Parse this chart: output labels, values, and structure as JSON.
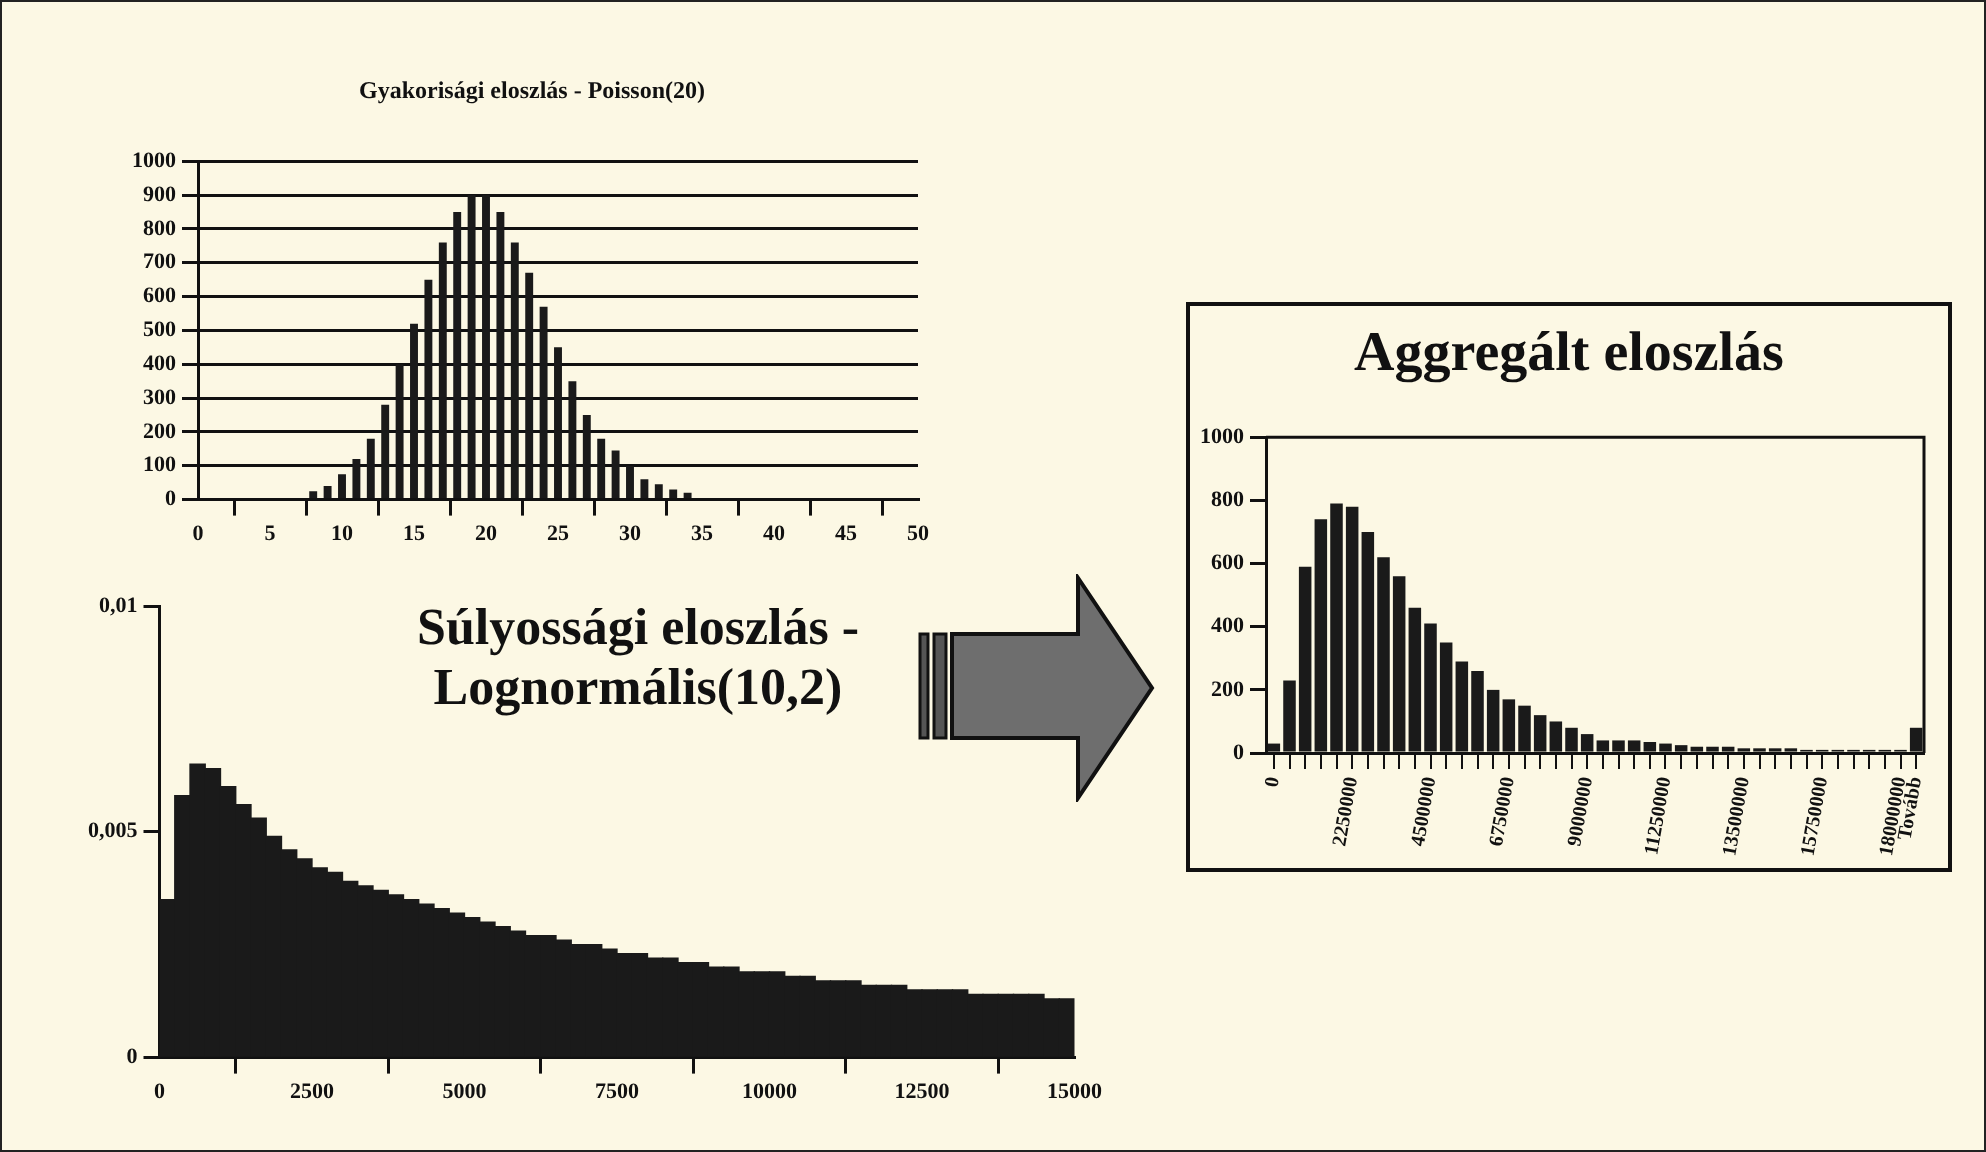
{
  "chart_data": [
    {
      "type": "bar",
      "title": "Gyakorisági eloszlás - Poisson(20)",
      "x": [
        8,
        9,
        10,
        11,
        12,
        13,
        14,
        15,
        16,
        17,
        18,
        19,
        20,
        21,
        22,
        23,
        24,
        25,
        26,
        27,
        28,
        29,
        30,
        31,
        32,
        33,
        34
      ],
      "values": [
        25,
        40,
        75,
        120,
        180,
        280,
        400,
        520,
        650,
        760,
        850,
        900,
        900,
        850,
        760,
        670,
        570,
        450,
        350,
        250,
        180,
        145,
        100,
        60,
        45,
        30,
        20
      ],
      "color": "#1a1a1a",
      "xlim": [
        0,
        50
      ],
      "xticks": [
        0,
        5,
        10,
        15,
        20,
        25,
        30,
        35,
        40,
        45,
        50
      ],
      "ylim": [
        0,
        1000
      ],
      "yticks": [
        0,
        100,
        200,
        300,
        400,
        500,
        600,
        700,
        800,
        900,
        1000
      ],
      "grid": "y"
    },
    {
      "type": "histogram",
      "title": "Súlyossági eloszlás - Lognormális(10,2)",
      "bins": [
        0,
        250,
        500,
        750,
        1000,
        1250,
        1500,
        1750,
        2000,
        2250,
        2500,
        2750,
        3000,
        3250,
        3500,
        3750,
        4000,
        4250,
        4500,
        4750,
        5000,
        5250,
        5500,
        5750,
        6000,
        6250,
        6500,
        6750,
        7000,
        7250,
        7500,
        7750,
        8000,
        8250,
        8500,
        8750,
        9000,
        9250,
        9500,
        9750,
        10000,
        10250,
        10500,
        10750,
        11000,
        11250,
        11500,
        11750,
        12000,
        12250,
        12500,
        12750,
        13000,
        13250,
        13500,
        13750,
        14000,
        14250,
        14500,
        14750,
        15000
      ],
      "values": [
        0.0035,
        0.0058,
        0.0065,
        0.0064,
        0.006,
        0.0056,
        0.0053,
        0.0049,
        0.0046,
        0.0044,
        0.0042,
        0.0041,
        0.0039,
        0.0038,
        0.0037,
        0.0036,
        0.0035,
        0.0034,
        0.0033,
        0.0032,
        0.0031,
        0.003,
        0.0029,
        0.0028,
        0.0027,
        0.0027,
        0.0026,
        0.0025,
        0.0025,
        0.0024,
        0.0023,
        0.0023,
        0.0022,
        0.0022,
        0.0021,
        0.0021,
        0.002,
        0.002,
        0.0019,
        0.0019,
        0.0019,
        0.0018,
        0.0018,
        0.0017,
        0.0017,
        0.0017,
        0.0016,
        0.0016,
        0.0016,
        0.0015,
        0.0015,
        0.0015,
        0.0015,
        0.0014,
        0.0014,
        0.0014,
        0.0014,
        0.0014,
        0.0013,
        0.0013
      ],
      "color": "#1a1a1a",
      "xlim": [
        0,
        15000
      ],
      "xticks": [
        0,
        2500,
        5000,
        7500,
        10000,
        12500,
        15000
      ],
      "ylim": [
        0,
        0.01
      ],
      "yticks": [
        0,
        {
          "value": 0.005,
          "label": "0,005"
        },
        {
          "value": 0.01,
          "label": "0,01"
        }
      ],
      "grid": false
    },
    {
      "type": "bar",
      "title": "Aggregált eloszlás",
      "categories": [
        "0",
        null,
        null,
        null,
        null,
        "2250000",
        null,
        null,
        null,
        null,
        "4500000",
        null,
        null,
        null,
        null,
        "6750000",
        null,
        null,
        null,
        null,
        "9000000",
        null,
        null,
        null,
        null,
        "11250000",
        null,
        null,
        null,
        null,
        "13500000",
        null,
        null,
        null,
        null,
        "15750000",
        null,
        null,
        null,
        null,
        "18000000",
        "Tovább"
      ],
      "values": [
        30,
        230,
        590,
        740,
        790,
        780,
        700,
        620,
        560,
        460,
        410,
        350,
        290,
        260,
        200,
        170,
        150,
        120,
        100,
        80,
        60,
        40,
        40,
        40,
        35,
        30,
        25,
        20,
        20,
        20,
        15,
        15,
        15,
        15,
        10,
        10,
        10,
        10,
        10,
        10,
        10,
        80
      ],
      "color": "#1a1a1a",
      "ylim": [
        0,
        1000
      ],
      "yticks": [
        0,
        200,
        400,
        600,
        800,
        1000
      ],
      "grid": false
    }
  ]
}
